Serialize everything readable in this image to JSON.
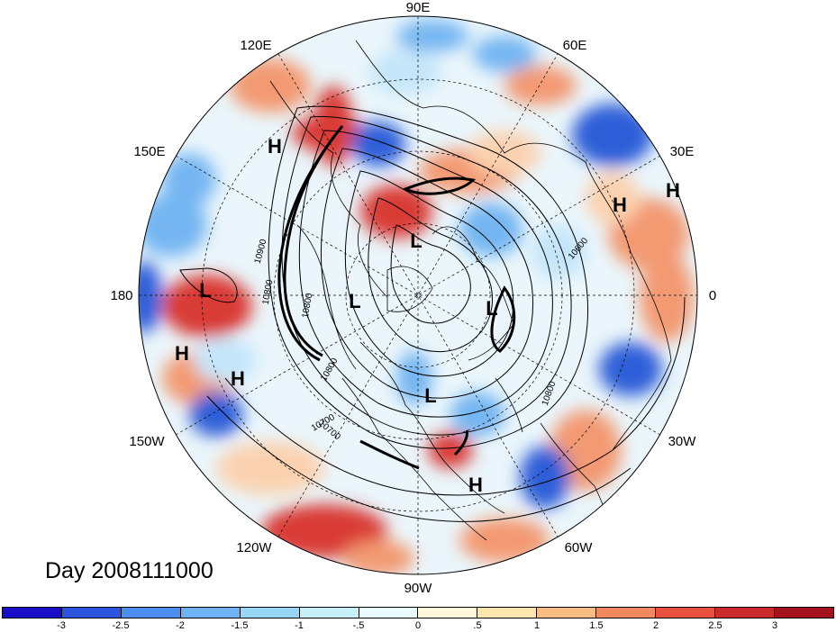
{
  "title": "Day 2008111000",
  "longitude_labels": {
    "deg90E": "90E",
    "deg120E": "120E",
    "deg60E": "60E",
    "deg150E": "150E",
    "deg30E": "30E",
    "deg180": "180",
    "deg0": "0",
    "deg150W": "150W",
    "deg30W": "30W",
    "deg120W": "120W",
    "deg60W": "60W",
    "deg90W": "90W"
  },
  "pressure_centers": [
    {
      "label": "H"
    },
    {
      "label": "H"
    },
    {
      "label": "H"
    },
    {
      "label": "L"
    },
    {
      "label": "L"
    },
    {
      "label": "L"
    },
    {
      "label": "H"
    },
    {
      "label": "H"
    },
    {
      "label": "L"
    },
    {
      "label": "L"
    },
    {
      "label": "H"
    }
  ],
  "contour_labels": [
    "10900",
    "10800",
    "10800",
    "10600",
    "10800",
    "10800",
    "10700",
    "10700"
  ],
  "colorbar": {
    "colors": [
      "#1a0fc8",
      "#2d55e0",
      "#4c8ff0",
      "#6fb3f5",
      "#98d6f8",
      "#c8f0fb",
      "#eafbfd",
      "#fdf8dc",
      "#fde6ad",
      "#f9bc82",
      "#f3895f",
      "#e8513f",
      "#cc2a2a",
      "#a4121e"
    ],
    "ticks": [
      "-3",
      "-2.5",
      "-2",
      "-1.5",
      "-1",
      "-.5",
      "0",
      ".5",
      "1",
      "1.5",
      "2",
      "2.5",
      "3"
    ]
  },
  "map_colors": {
    "land_outline": "#000000",
    "strong_positive": "#d93b36",
    "positive": "#f39a72",
    "weak_positive": "#fbd2b0",
    "strong_negative": "#2f5fd8",
    "negative": "#74b6f2",
    "weak_negative": "#c5e6fa"
  }
}
